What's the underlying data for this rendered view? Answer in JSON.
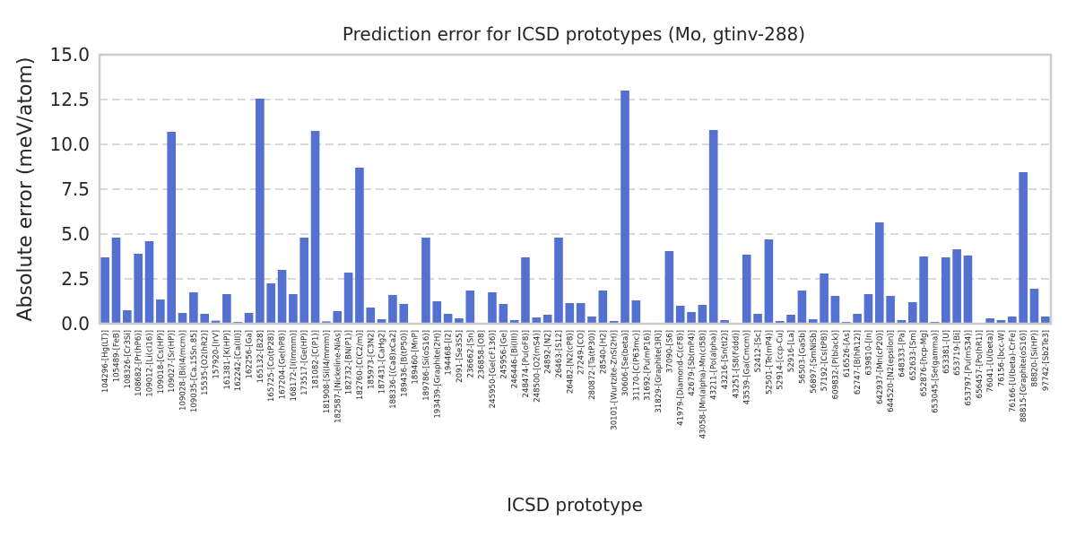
{
  "chart_data": {
    "type": "bar",
    "title": "Prediction error for ICSD prototypes (Mo, gtinv-288)",
    "xlabel": "ICSD prototype",
    "ylabel": "Absolute error (meV/atom)",
    "ylim": [
      0,
      15
    ],
    "yticks": [
      "0.0",
      "2.5",
      "5.0",
      "7.5",
      "10.0",
      "12.5",
      "15.0"
    ],
    "grid": "horizontal dashed",
    "bar_color": "#5470d1",
    "categories": [
      "104296-[Hg(LT)]",
      "105489-[FeB]",
      "108326-[Cr3Si]",
      "108682-[Pr(hP6)]",
      "109012-[Li(cI16)]",
      "109018-[Cs(HP)]",
      "109027-[Sr(HP)]",
      "109028-[Bi(I4/mcm)]",
      "109035-[Ca.15Sn.85]",
      "15535-[O2(hR2)]",
      "157920-[IrV]",
      "161381-[K(HP)]",
      "162242-[Ca(III)]",
      "162256-[Ga]",
      "165132-[B28]",
      "165725-[Co(tP28)]",
      "167204-[Ge(hP8)]",
      "168172-[I(Immm)]",
      "173517-[Ge(HP)]",
      "181082-[C(P1)]",
      "181908-[Si(I4/mmm)]",
      "182587-[Nickeline-NiAs]",
      "182732-[BN(P1)]",
      "182760-[C(C2/m)]",
      "185973-[C3N2]",
      "187431-[CaHg2]",
      "188336-[(Ca8)xCa2]",
      "189436-[B(tP50)]",
      "189460-[MnP]",
      "189786-[Si(oS16)]",
      "193439-[Graphite(2H)]",
      "194468-[I2]",
      "2091-[Se3S5]",
      "236662-[Sn]",
      "236858-[O8]",
      "245950-[Ge(cF136)]",
      "245956-[Ge]",
      "246446-[Bi(III)]",
      "248474-[Pu(oF8)]",
      "248500-[O2(mS4)]",
      "24892-[N2]",
      "26463-[S12]",
      "26482-[N2(cP8)]",
      "27249-[CO]",
      "280872-[Ta(tP30)]",
      "28540-[H2]",
      "30101-[Wurtzite-ZnS(2H)]",
      "30606-[Se(beta)]",
      "31170-[C(P63mc)]",
      "31692-[Pu(mP16)]",
      "31829-[Graphite(3R)]",
      "37090-[S6]",
      "41979-[Diamond-C(cF8)]",
      "42679-[Sb(mP4)]",
      "43058-[Mn(alpha)-Mn(cI58)]",
      "43211-[Po(alpha)]",
      "43216-[Sn(tI2)]",
      "43251-[S8(Fddd)]",
      "43539-[Ga(Cmcm)]",
      "52412-[Sc]",
      "52501-[Te(mP4)]",
      "52914-[ccp-Cu]",
      "52916-[La]",
      "56503-[GaSb]",
      "56897-[SmNiSb]",
      "57192-[Cs(tP8)]",
      "609832-[P(black)]",
      "616526-[As]",
      "62747-[B(hR12)]",
      "639810-[In]",
      "642937-[Mn(cP20)]",
      "644520-[N2(epsilon)]",
      "648333-[Pa]",
      "652633-[Sm]",
      "652876-[hcp-Mg]",
      "653045-[Se(gamma)]",
      "653381-[U]",
      "653719-[Bi]",
      "653797-[Pu(mS34)]",
      "656457-[Po(hR1)]",
      "76041-[U(beta)]",
      "76156-[bcc-W]",
      "76166-[U(beta)-CrFe]",
      "88815-[Graphite(oS16)]",
      "88820-[Si(HP)]",
      "97742-[Sb2Te3]"
    ],
    "values": [
      3.7,
      4.8,
      0.75,
      3.9,
      4.6,
      1.35,
      10.7,
      0.6,
      1.75,
      0.55,
      0.17,
      1.65,
      0.1,
      0.6,
      12.55,
      2.25,
      3.0,
      1.65,
      4.8,
      10.75,
      0.13,
      0.7,
      2.85,
      8.7,
      0.9,
      0.25,
      1.6,
      1.1,
      0.0,
      4.8,
      1.25,
      0.55,
      0.3,
      1.85,
      0.05,
      1.75,
      1.1,
      0.2,
      3.7,
      0.35,
      0.5,
      4.8,
      1.15,
      1.15,
      0.4,
      1.85,
      0.15,
      13.0,
      1.3,
      0.05,
      0.05,
      4.05,
      1.0,
      0.65,
      1.05,
      10.8,
      0.2,
      0.0,
      3.85,
      0.55,
      4.7,
      0.15,
      0.5,
      1.85,
      0.25,
      2.8,
      1.55,
      0.1,
      0.55,
      1.65,
      5.65,
      1.55,
      0.2,
      1.2,
      3.75,
      0.1,
      3.7,
      4.15,
      3.8,
      0.05,
      0.3,
      0.2,
      0.4,
      8.45,
      1.95,
      0.4
    ]
  }
}
